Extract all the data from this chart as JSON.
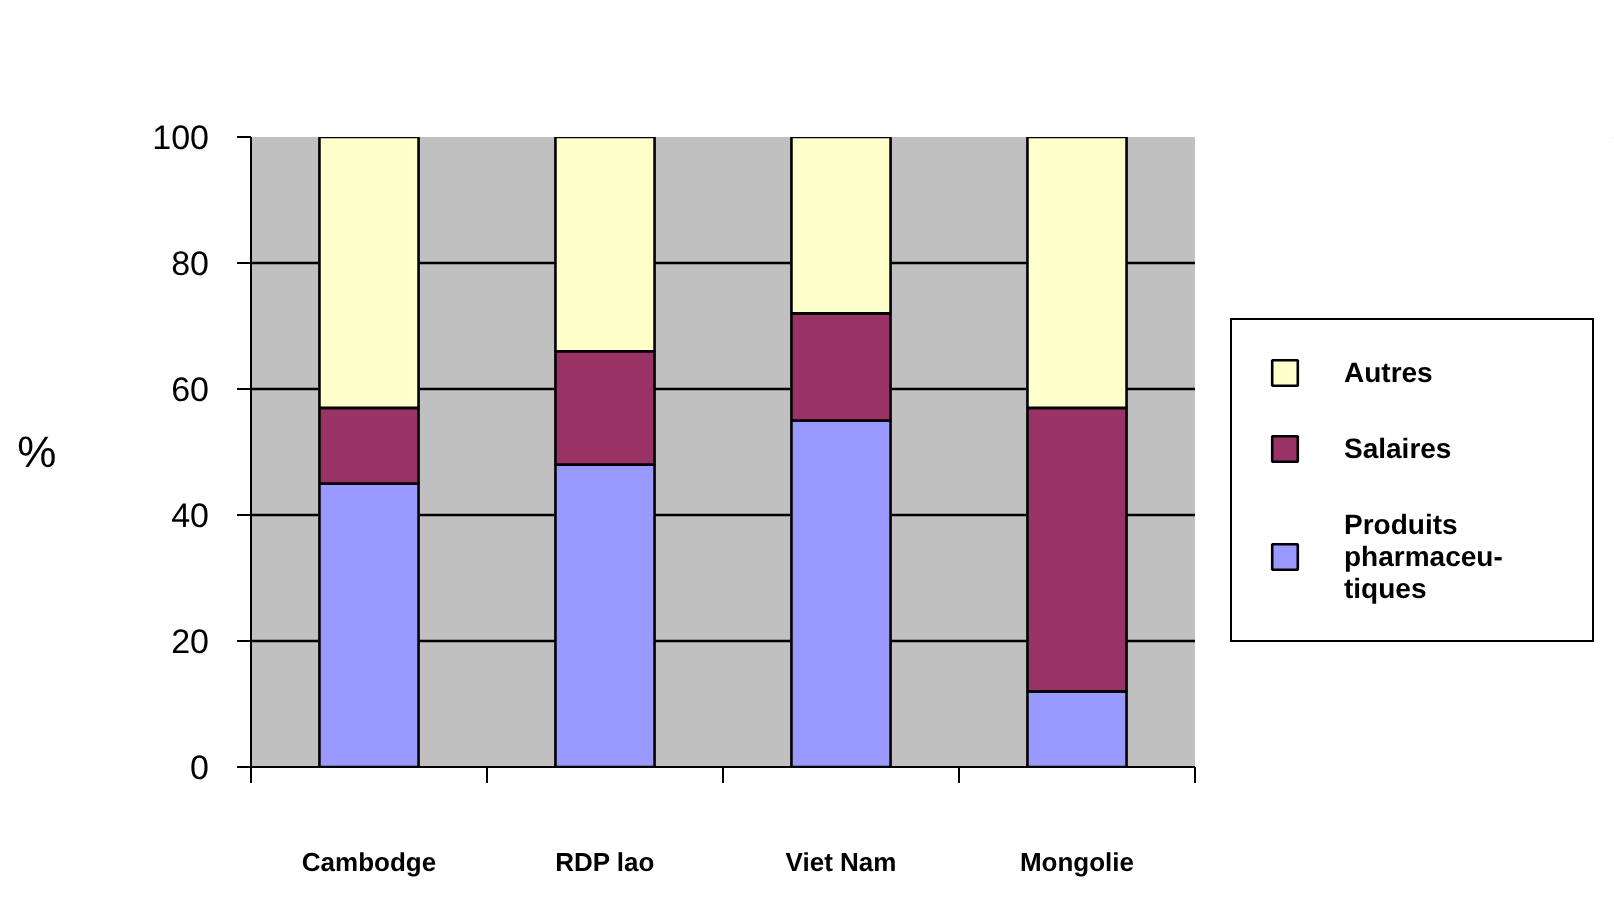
{
  "chart_data": {
    "type": "bar",
    "stacked": true,
    "ylabel": "%",
    "categories": [
      "Cambodge",
      "RDP lao",
      "Viet Nam",
      "Mongolie"
    ],
    "series": [
      {
        "name": "Produits pharmaceu-tiques",
        "color": "#9999ff",
        "values": [
          45,
          48,
          55,
          12
        ]
      },
      {
        "name": "Salaires",
        "color": "#993366",
        "values": [
          12,
          18,
          17,
          45
        ]
      },
      {
        "name": "Autres",
        "color": "#ffffcc",
        "values": [
          43,
          34,
          28,
          43
        ]
      }
    ],
    "ylim": [
      0,
      100
    ],
    "yticks": [
      0,
      20,
      40,
      60,
      80,
      100
    ],
    "grid": "y",
    "legend": "right"
  }
}
